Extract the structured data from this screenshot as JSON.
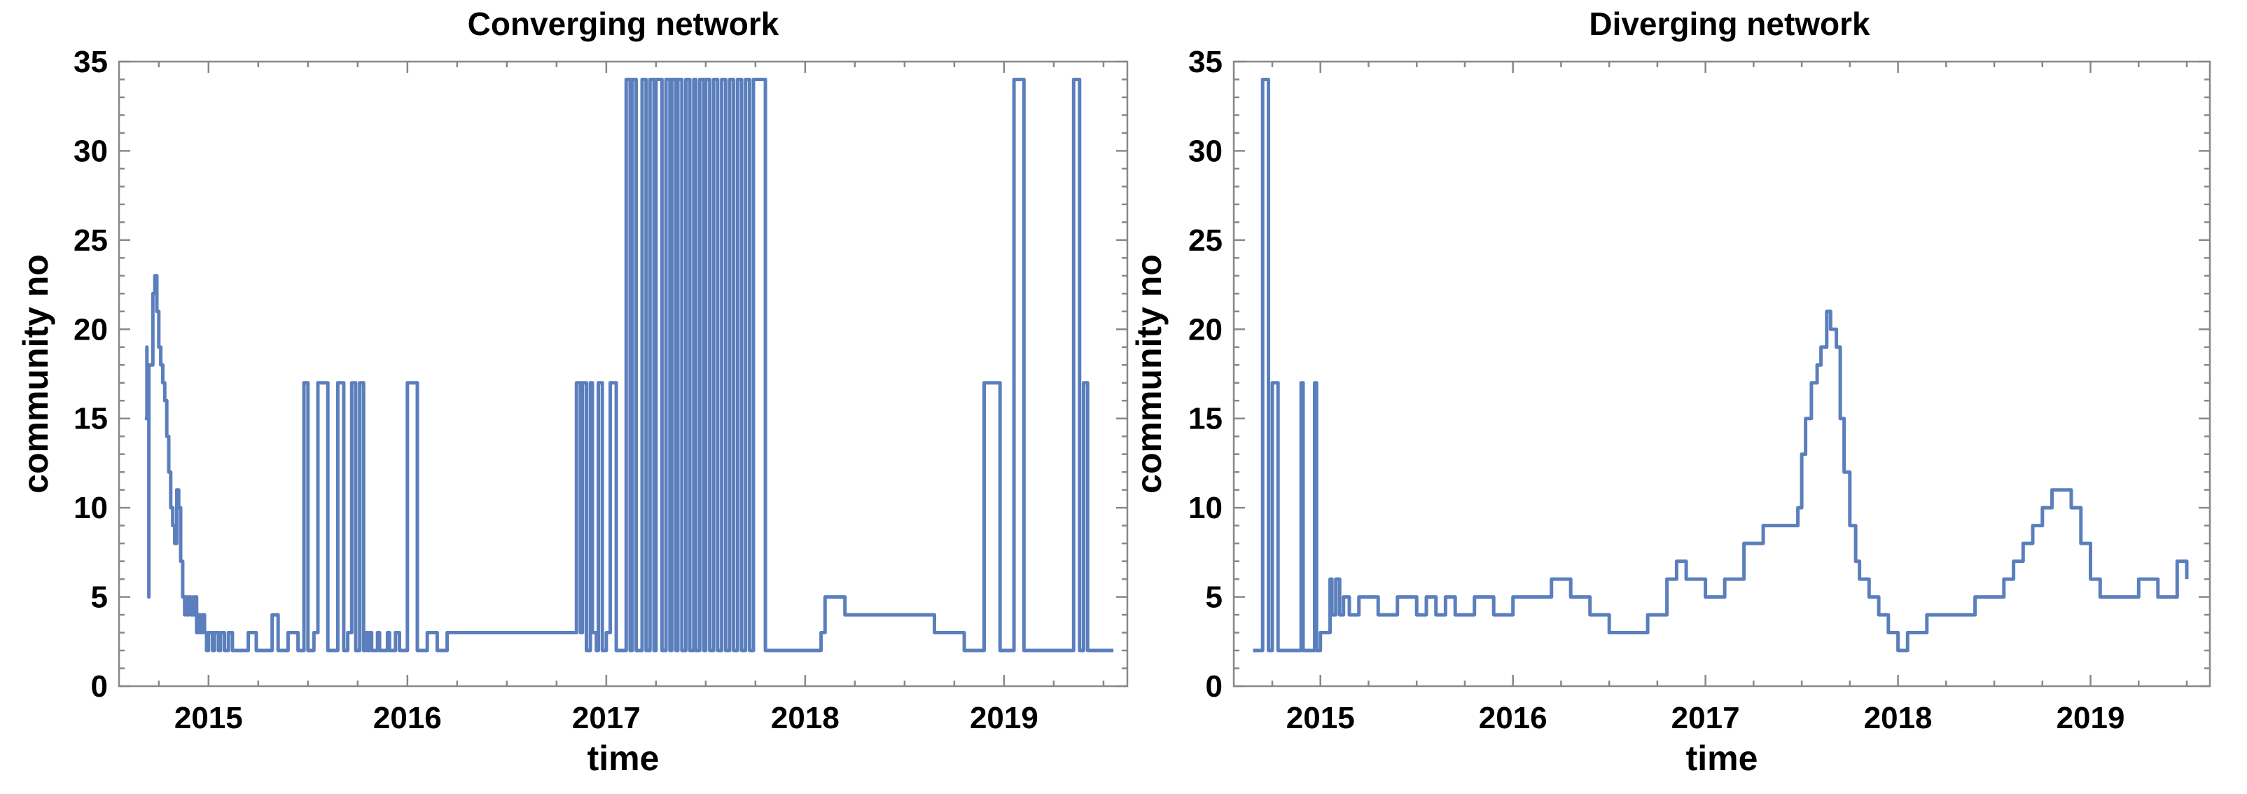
{
  "chart_data": [
    {
      "type": "line",
      "title": "Converging network",
      "xlabel": "time",
      "ylabel": "community no",
      "xlim": [
        2014.55,
        2019.62
      ],
      "ylim": [
        0,
        35
      ],
      "x_ticks": [
        2015,
        2016,
        2017,
        2018,
        2019
      ],
      "y_ticks": [
        0,
        5,
        10,
        15,
        20,
        25,
        30,
        35
      ],
      "grid": false,
      "color": "#5b7fbd",
      "series": [
        {
          "x": [
            2014.68,
            2014.69,
            2014.69,
            2014.7,
            2014.7,
            2014.72,
            2014.73,
            2014.74,
            2014.75,
            2014.76,
            2014.77,
            2014.78,
            2014.79,
            2014.8,
            2014.81,
            2014.82,
            2014.83,
            2014.84,
            2014.84,
            2014.85,
            2014.86,
            2014.86,
            2014.87,
            2014.88,
            2014.88,
            2014.89,
            2014.9,
            2014.91,
            2014.92,
            2014.92,
            2014.93,
            2014.94,
            2014.95,
            2014.96,
            2014.97,
            2014.98,
            2014.99,
            2015.0,
            2015.02,
            2015.03,
            2015.05,
            2015.06,
            2015.08,
            2015.1,
            2015.12,
            2015.15,
            2015.2,
            2015.24,
            2015.28,
            2015.32,
            2015.35,
            2015.4,
            2015.45,
            2015.48,
            2015.5,
            2015.53,
            2015.55,
            2015.6,
            2015.65,
            2015.68,
            2015.7,
            2015.72,
            2015.74,
            2015.76,
            2015.78,
            2015.79,
            2015.8,
            2015.81,
            2015.82,
            2015.83,
            2015.85,
            2015.86,
            2015.88,
            2015.9,
            2015.91,
            2015.93,
            2015.94,
            2015.96,
            2015.98,
            2016.0,
            2016.05,
            2016.1,
            2016.15,
            2016.2,
            2016.22,
            2016.23,
            2016.25,
            2016.26,
            2016.28,
            2016.3,
            2016.35,
            2016.5,
            2016.7,
            2016.85,
            2016.87,
            2016.88,
            2016.9,
            2016.92,
            2016.93,
            2016.95,
            2016.96,
            2016.98,
            2017.0,
            2017.02,
            2017.05,
            2017.1,
            2017.12,
            2017.13,
            2017.15,
            2017.18,
            2017.2,
            2017.22,
            2017.24,
            2017.25,
            2017.28,
            2017.3,
            2017.32,
            2017.33,
            2017.35,
            2017.36,
            2017.38,
            2017.4,
            2017.42,
            2017.44,
            2017.45,
            2017.47,
            2017.49,
            2017.5,
            2017.52,
            2017.54,
            2017.56,
            2017.58,
            2017.6,
            2017.62,
            2017.64,
            2017.66,
            2017.68,
            2017.7,
            2017.72,
            2017.74,
            2017.8,
            2017.9,
            2018.0,
            2018.05,
            2018.08,
            2018.1,
            2018.2,
            2018.3,
            2018.4,
            2018.5,
            2018.58,
            2018.62,
            2018.65,
            2018.7,
            2018.8,
            2018.83,
            2018.85,
            2018.9,
            2018.98,
            2019.0,
            2019.03,
            2019.05,
            2019.1,
            2019.2,
            2019.3,
            2019.32,
            2019.35,
            2019.38,
            2019.4,
            2019.42,
            2019.45,
            2019.5,
            2019.55
          ],
          "y": [
            15,
            19,
            15,
            5,
            18,
            22,
            23,
            21,
            19,
            18,
            17,
            16,
            14,
            12,
            10,
            9,
            8,
            8,
            11,
            10,
            9,
            7,
            5,
            4,
            5,
            4,
            5,
            4,
            5,
            4,
            5,
            3,
            4,
            3,
            4,
            3,
            2,
            3,
            2,
            3,
            2,
            3,
            2,
            3,
            2,
            2,
            3,
            2,
            2,
            4,
            2,
            3,
            2,
            17,
            2,
            3,
            17,
            2,
            17,
            2,
            3,
            17,
            2,
            17,
            2,
            3,
            2,
            3,
            2,
            2,
            3,
            2,
            2,
            3,
            2,
            2,
            3,
            2,
            2,
            17,
            2,
            3,
            2,
            3,
            3,
            3,
            3,
            3,
            3,
            3,
            3,
            3,
            3,
            17,
            3,
            17,
            2,
            17,
            3,
            2,
            17,
            2,
            3,
            17,
            2,
            34,
            2,
            34,
            2,
            34,
            2,
            34,
            2,
            34,
            2,
            34,
            2,
            34,
            2,
            34,
            2,
            34,
            2,
            34,
            2,
            34,
            2,
            34,
            2,
            34,
            2,
            34,
            2,
            34,
            2,
            34,
            2,
            34,
            2,
            34,
            2,
            2,
            2,
            2,
            3,
            5,
            4,
            4,
            4,
            4,
            4,
            4,
            3,
            3,
            2,
            2,
            2,
            17,
            2,
            2,
            2,
            34,
            2,
            2,
            2,
            2,
            34,
            2,
            17,
            2,
            2,
            2,
            2
          ]
        }
      ]
    },
    {
      "type": "line",
      "title": "Diverging network",
      "xlabel": "time",
      "ylabel": "community no",
      "xlim": [
        2014.55,
        2019.62
      ],
      "ylim": [
        0,
        35
      ],
      "x_ticks": [
        2015,
        2016,
        2017,
        2018,
        2019
      ],
      "y_ticks": [
        0,
        5,
        10,
        15,
        20,
        25,
        30,
        35
      ],
      "grid": false,
      "color": "#5b7fbd",
      "series": [
        {
          "x": [
            2014.65,
            2014.69,
            2014.7,
            2014.73,
            2014.75,
            2014.78,
            2014.79,
            2014.85,
            2014.9,
            2014.91,
            2014.96,
            2014.97,
            2014.98,
            2015.0,
            2015.02,
            2015.05,
            2015.06,
            2015.08,
            2015.1,
            2015.12,
            2015.15,
            2015.2,
            2015.3,
            2015.4,
            2015.5,
            2015.55,
            2015.6,
            2015.65,
            2015.7,
            2015.8,
            2015.9,
            2016.0,
            2016.05,
            2016.1,
            2016.15,
            2016.2,
            2016.25,
            2016.3,
            2016.35,
            2016.4,
            2016.45,
            2016.5,
            2016.6,
            2016.7,
            2016.8,
            2016.85,
            2016.9,
            2017.0,
            2017.1,
            2017.2,
            2017.3,
            2017.4,
            2017.45,
            2017.48,
            2017.5,
            2017.52,
            2017.55,
            2017.58,
            2017.6,
            2017.63,
            2017.65,
            2017.68,
            2017.7,
            2017.72,
            2017.75,
            2017.78,
            2017.8,
            2017.85,
            2017.9,
            2017.95,
            2018.0,
            2018.05,
            2018.1,
            2018.15,
            2018.2,
            2018.3,
            2018.4,
            2018.5,
            2018.55,
            2018.6,
            2018.65,
            2018.7,
            2018.75,
            2018.8,
            2018.85,
            2018.9,
            2018.95,
            2019.0,
            2019.05,
            2019.1,
            2019.15,
            2019.2,
            2019.25,
            2019.3,
            2019.35,
            2019.4,
            2019.45,
            2019.5
          ],
          "y": [
            2,
            2,
            34,
            2,
            17,
            2,
            2,
            2,
            17,
            2,
            2,
            17,
            2,
            3,
            3,
            6,
            4,
            6,
            4,
            5,
            4,
            5,
            4,
            5,
            4,
            5,
            4,
            5,
            4,
            5,
            4,
            5,
            5,
            5,
            5,
            6,
            6,
            5,
            5,
            4,
            4,
            3,
            3,
            4,
            6,
            7,
            6,
            5,
            6,
            8,
            9,
            9,
            9,
            10,
            13,
            15,
            17,
            18,
            19,
            21,
            20,
            19,
            15,
            12,
            9,
            7,
            6,
            5,
            4,
            3,
            2,
            3,
            3,
            4,
            4,
            4,
            5,
            5,
            6,
            7,
            8,
            9,
            10,
            11,
            11,
            10,
            8,
            6,
            5,
            5,
            5,
            5,
            6,
            6,
            5,
            5,
            7,
            6
          ]
        }
      ]
    }
  ]
}
